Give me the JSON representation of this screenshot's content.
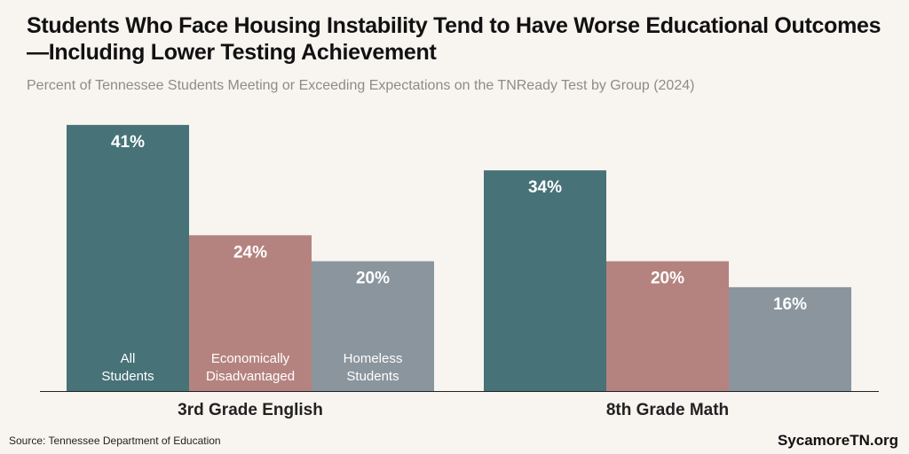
{
  "chart_data": {
    "type": "bar",
    "title": "Students Who Face Housing Instability Tend to Have Worse Educational Outcomes—Including Lower Testing Achievement",
    "subtitle": "Percent of Tennessee Students Meeting or Exceeding Expectations on the TNReady Test by Group (2024)",
    "categories": [
      "3rd Grade English",
      "8th Grade Math"
    ],
    "series": [
      {
        "name": "All Students",
        "color": "#467278",
        "values": [
          41,
          34
        ],
        "value_labels": [
          "41%",
          "34%"
        ]
      },
      {
        "name": "Economically Disadvantaged",
        "color": "#b5837f",
        "values": [
          24,
          20
        ],
        "value_labels": [
          "24%",
          "20%"
        ]
      },
      {
        "name": "Homeless Students",
        "color": "#8a959d",
        "values": [
          20,
          16
        ],
        "value_labels": [
          "20%",
          "16%"
        ]
      }
    ],
    "source": "Source: Tennessee Department of Education",
    "brand": "SycamoreTN.org"
  }
}
